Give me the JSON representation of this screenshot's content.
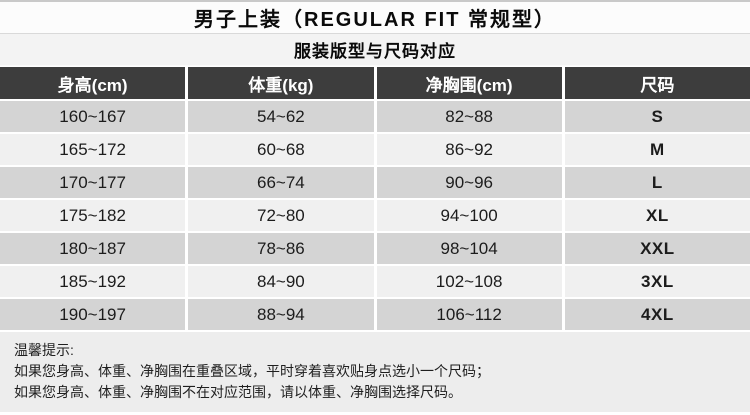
{
  "title": "男子上装（REGULAR FIT 常规型）",
  "subtitle": "服装版型与尺码对应",
  "table": {
    "headers": [
      "身高(cm)",
      "体重(kg)",
      "净胸围(cm)",
      "尺码"
    ],
    "rows": [
      [
        "160~167",
        "54~62",
        "82~88",
        "S"
      ],
      [
        "165~172",
        "60~68",
        "86~92",
        "M"
      ],
      [
        "170~177",
        "66~74",
        "90~96",
        "L"
      ],
      [
        "175~182",
        "72~80",
        "94~100",
        "XL"
      ],
      [
        "180~187",
        "78~86",
        "98~104",
        "XXL"
      ],
      [
        "185~192",
        "84~90",
        "102~108",
        "3XL"
      ],
      [
        "190~197",
        "88~94",
        "106~112",
        "4XL"
      ]
    ]
  },
  "tips": {
    "heading": "温馨提示:",
    "lines": [
      "如果您身高、体重、净胸围在重叠区域，平时穿着喜欢贴身点选小一个尺码；",
      "如果您身高、体重、净胸围不在对应范围，请以体重、净胸围选择尺码。"
    ]
  },
  "colors": {
    "header_bg": "#3d3d3d",
    "header_text": "#ffffff",
    "row_dark": "#d4d4d4",
    "row_light": "#f0f0f0",
    "subtitle_bg": "#f3f3f3",
    "title_bg": "#fcfcfc",
    "tips_bg": "#ededed"
  }
}
